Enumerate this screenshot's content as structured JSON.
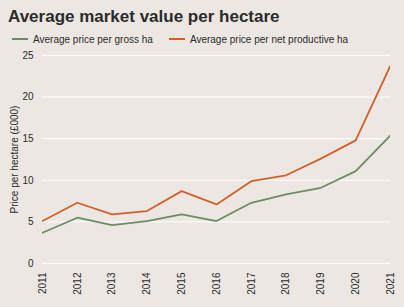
{
  "chart_data": {
    "type": "line",
    "title": "Average market value per hectare",
    "y_label": "Price per hectare (£000)",
    "x": [
      2011,
      2012,
      2013,
      2014,
      2015,
      2016,
      2017,
      2018,
      2019,
      2020,
      2021
    ],
    "series": [
      {
        "name": "Average price per gross ha",
        "color": "#6e8c62",
        "values": [
          3.7,
          5.5,
          4.6,
          5.1,
          5.9,
          5.1,
          7.3,
          8.3,
          9.1,
          11.1,
          15.4
        ]
      },
      {
        "name": "Average price per net productive ha",
        "color": "#d2602a",
        "values": [
          5.1,
          7.3,
          5.9,
          6.3,
          8.7,
          7.1,
          9.9,
          10.6,
          12.6,
          14.8,
          23.8
        ]
      }
    ],
    "xlim": [
      2011,
      2021
    ],
    "xticks": [
      2011,
      2012,
      2013,
      2014,
      2015,
      2016,
      2017,
      2018,
      2019,
      2020,
      2021
    ],
    "ylim": [
      0,
      25
    ],
    "yticks": [
      0,
      5,
      10,
      15,
      20,
      25
    ],
    "grid": true
  }
}
